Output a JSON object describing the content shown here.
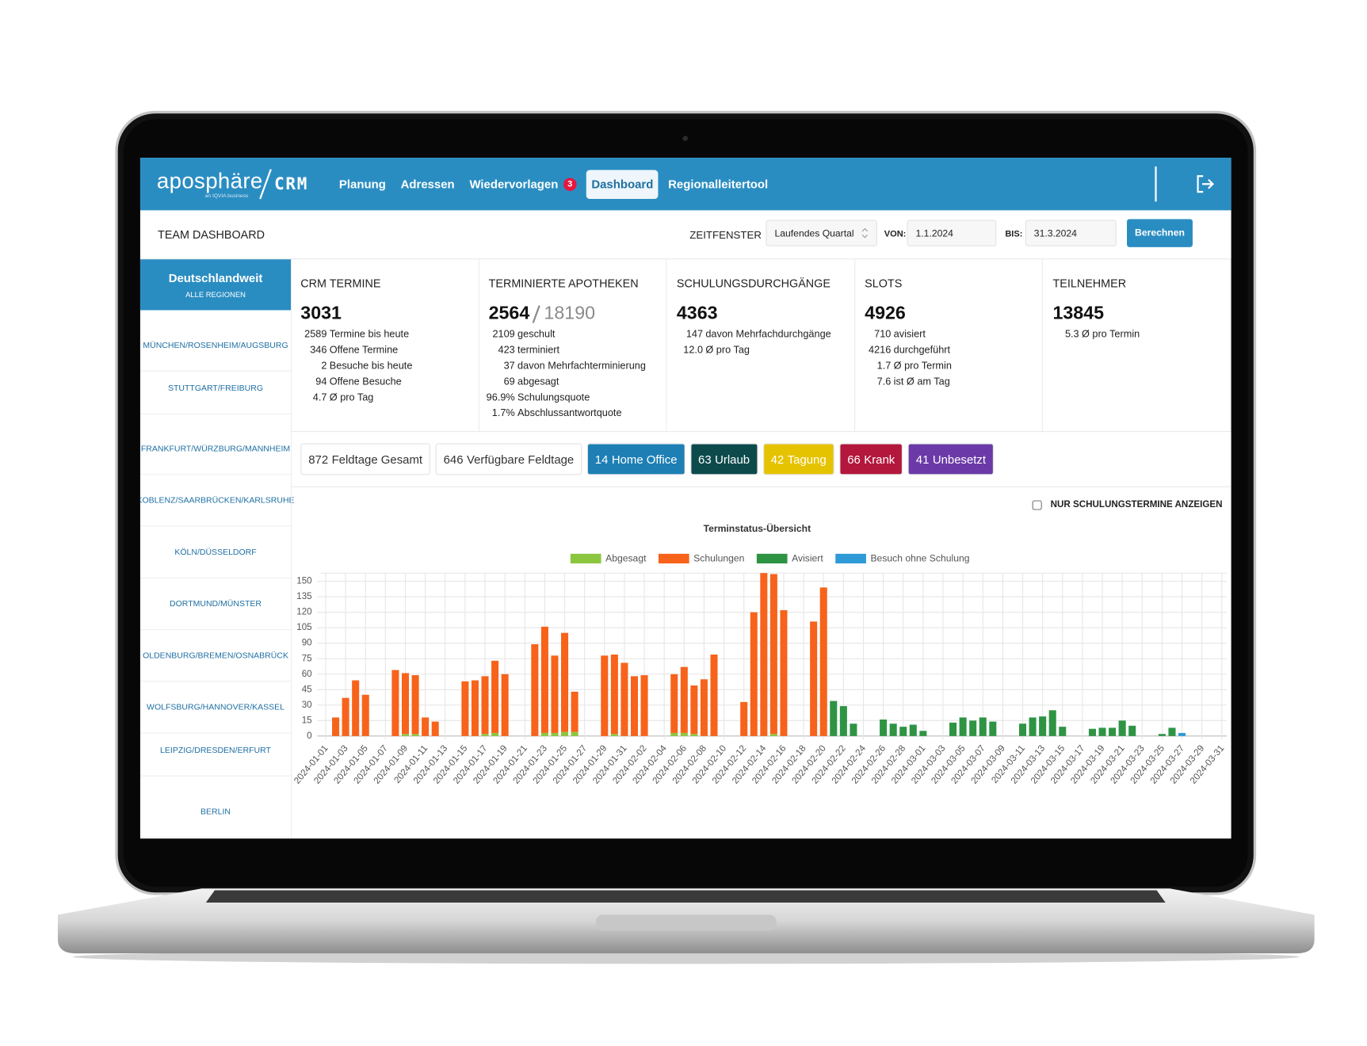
{
  "nav": {
    "logo": "aposphäre",
    "logo_tagline": "an IQVIA business",
    "app": "CRM",
    "items": [
      {
        "label": "Planung"
      },
      {
        "label": "Adressen"
      },
      {
        "label": "Wiedervorlagen",
        "badge": 3
      },
      {
        "label": "Dashboard",
        "active": true
      },
      {
        "label": "Regionalleitertool"
      }
    ]
  },
  "header": {
    "title": "TEAM DASHBOARD",
    "window_label": "ZEITFENSTER",
    "window": "Laufendes Quartal",
    "from_label": "VON:",
    "from": "1.1.2024",
    "to_label": "BIS:",
    "to": "31.3.2024",
    "button": "Berechnen"
  },
  "sidebar": {
    "active": {
      "title": "Deutschlandweit",
      "subtitle": "ALLE REGIONEN"
    },
    "regions": [
      "MÜNCHEN/ROSENHEIM/AUGSBURG",
      "STUTTGART/FREIBURG",
      "FRANKFURT/WÜRZBURG/MANNHEIM",
      "KOBLENZ/SAARBRÜCKEN/KARLSRUHE",
      "KÖLN/DÜSSELDORF",
      "DORTMUND/MÜNSTER",
      "OLDENBURG/BREMEN/OSNABRÜCK",
      "WOLFSBURG/HANNOVER/KASSEL",
      "LEIPZIG/DRESDEN/ERFURT",
      "BERLIN"
    ]
  },
  "kpis": [
    {
      "title": "CRM TERMINE",
      "value": 3031,
      "rows": [
        {
          "value": 2589,
          "label": "Termine bis heute"
        },
        {
          "value": 346,
          "label": "Offene Termine"
        },
        {
          "value": 2,
          "label": "Besuche bis heute"
        },
        {
          "value": 94,
          "label": "Offene Besuche"
        },
        {
          "value": 4.7,
          "label": "Ø pro Tag"
        }
      ]
    },
    {
      "title": "TERMINIERTE APOTHEKEN",
      "value": 2564,
      "total": 18190,
      "rows": [
        {
          "value": 2109,
          "label": "geschult"
        },
        {
          "value": 423,
          "label": "terminiert"
        },
        {
          "value": 37,
          "label": "davon Mehrfachterminierung"
        },
        {
          "value": 69,
          "label": "abgesagt"
        },
        {
          "value": "96.9%",
          "label": "Schulungsquote"
        },
        {
          "value": "1.7%",
          "label": "Abschlussantwortquote"
        }
      ]
    },
    {
      "title": "SCHULUNGSDURCHGÄNGE",
      "value": 4363,
      "rows": [
        {
          "value": 147,
          "label": "davon Mehrfachdurchgänge"
        },
        {
          "value": "12.0",
          "label": "Ø pro Tag"
        }
      ]
    },
    {
      "title": "SLOTS",
      "value": 4926,
      "rows": [
        {
          "value": 710,
          "label": "avisiert"
        },
        {
          "value": 4216,
          "label": "durchgeführt"
        },
        {
          "value": 1.7,
          "label": "Ø pro Termin"
        },
        {
          "value": 7.6,
          "label": "ist Ø am Tag"
        }
      ]
    },
    {
      "title": "TEILNEHMER",
      "value": 13845,
      "rows": [
        {
          "value": 5.3,
          "label": "Ø pro Termin"
        }
      ]
    }
  ],
  "chips": [
    {
      "count": 872,
      "label": "Feldtage Gesamt",
      "color": "#ffffff",
      "text_color": "#333333"
    },
    {
      "count": 646,
      "label": "Verfügbare Feldtage",
      "color": "#ffffff",
      "text_color": "#333333"
    },
    {
      "count": 14,
      "label": "Home Office",
      "color": "#1d7fb4",
      "text_color": "#ffffff"
    },
    {
      "count": 63,
      "label": "Urlaub",
      "color": "#0d4a4c",
      "text_color": "#ffffff"
    },
    {
      "count": 42,
      "label": "Tagung",
      "color": "#e6c300",
      "text_color": "#ffffff"
    },
    {
      "count": 66,
      "label": "Krank",
      "color": "#b3173c",
      "text_color": "#ffffff"
    },
    {
      "count": 41,
      "label": "Unbesetzt",
      "color": "#6b3aa8",
      "text_color": "#ffffff"
    }
  ],
  "filter": {
    "label": "NUR SCHULUNGSTERMINE ANZEIGEN",
    "checked": false
  },
  "chart_data": {
    "type": "stacked_bar",
    "title": "Terminstatus-Übersicht",
    "categories": [
      "2024-01-01",
      null,
      "2024-01-03",
      null,
      "2024-01-05",
      null,
      "2024-01-07",
      null,
      "2024-01-09",
      null,
      "2024-01-11",
      null,
      "2024-01-13",
      null,
      "2024-01-15",
      null,
      "2024-01-17",
      null,
      "2024-01-19",
      null,
      "2024-01-21",
      null,
      "2024-01-23",
      null,
      "2024-01-25",
      null,
      "2024-01-27",
      null,
      "2024-01-29",
      null,
      "2024-01-31",
      null,
      "2024-02-02",
      null,
      "2024-02-04",
      null,
      "2024-02-06",
      null,
      "2024-02-08",
      null,
      "2024-02-10",
      null,
      "2024-02-12",
      null,
      "2024-02-14",
      null,
      "2024-02-16",
      null,
      "2024-02-18",
      null,
      "2024-02-20",
      null,
      "2024-02-22",
      null,
      "2024-02-24",
      null,
      "2024-02-26",
      null,
      "2024-02-28",
      null,
      "2024-03-01",
      null,
      "2024-03-03",
      null,
      "2024-03-05",
      null,
      "2024-03-07",
      null,
      "2024-03-09",
      null,
      "2024-03-11",
      null,
      "2024-03-13",
      null,
      "2024-03-15",
      null,
      "2024-03-17",
      null,
      "2024-03-19",
      null,
      "2024-03-21",
      null,
      "2024-03-23",
      null,
      "2024-03-25",
      null,
      "2024-03-27",
      null,
      "2024-03-29",
      null,
      "2024-03-31"
    ],
    "series": [
      {
        "name": "Abgesagt",
        "color": "#8cc63f",
        "values": [
          0,
          0,
          0,
          0,
          0,
          0,
          0,
          0,
          2,
          2,
          0,
          0,
          0,
          0,
          0,
          0,
          2,
          3,
          0,
          0,
          0,
          0,
          3,
          3,
          4,
          4,
          0,
          0,
          0,
          2,
          0,
          0,
          0,
          0,
          0,
          3,
          3,
          2,
          0,
          0,
          0,
          0,
          0,
          0,
          0,
          2,
          0,
          0,
          0,
          0,
          0,
          0,
          0,
          0,
          0,
          0,
          0,
          0,
          0,
          0,
          0,
          0,
          0,
          0,
          0,
          0,
          0,
          0,
          0,
          0,
          0,
          0,
          0,
          0,
          0,
          0,
          0,
          0,
          0,
          0,
          0,
          0,
          0,
          0,
          0,
          0,
          0,
          0,
          0,
          0,
          0
        ]
      },
      {
        "name": "Schulungen",
        "color": "#f7631b",
        "values": [
          0,
          18,
          37,
          54,
          40,
          0,
          0,
          64,
          59,
          57,
          18,
          14,
          0,
          0,
          53,
          54,
          56,
          70,
          60,
          0,
          0,
          89,
          103,
          75,
          96,
          39,
          0,
          0,
          78,
          77,
          71,
          58,
          59,
          0,
          0,
          57,
          64,
          47,
          55,
          79,
          0,
          0,
          33,
          120,
          158,
          155,
          122,
          0,
          0,
          111,
          144,
          0,
          0,
          0,
          0,
          0,
          0,
          0,
          0,
          0,
          0,
          0,
          0,
          0,
          0,
          0,
          0,
          0,
          0,
          0,
          0,
          0,
          0,
          0,
          0,
          0,
          0,
          0,
          0,
          0,
          0,
          0,
          0,
          0,
          0,
          0,
          0,
          0,
          0,
          0,
          0
        ]
      },
      {
        "name": "Avisiert",
        "color": "#2e9444",
        "values": [
          0,
          0,
          0,
          0,
          0,
          0,
          0,
          0,
          0,
          0,
          0,
          0,
          0,
          0,
          0,
          0,
          0,
          0,
          0,
          0,
          0,
          0,
          0,
          0,
          0,
          0,
          0,
          0,
          0,
          0,
          0,
          0,
          0,
          0,
          0,
          0,
          0,
          0,
          0,
          0,
          0,
          0,
          0,
          0,
          0,
          0,
          0,
          0,
          0,
          0,
          0,
          34,
          29,
          12,
          0,
          0,
          16,
          12,
          9,
          11,
          5,
          0,
          0,
          13,
          18,
          15,
          18,
          14,
          0,
          0,
          12,
          18,
          19,
          25,
          9,
          0,
          0,
          7,
          8,
          8,
          15,
          10,
          0,
          0,
          2,
          8,
          0,
          0,
          0,
          0,
          0
        ]
      },
      {
        "name": "Besuch ohne Schulung",
        "color": "#2f9bd6",
        "values": [
          0,
          0,
          0,
          0,
          0,
          0,
          0,
          0,
          0,
          0,
          0,
          0,
          0,
          0,
          0,
          0,
          0,
          0,
          0,
          0,
          0,
          0,
          0,
          0,
          0,
          0,
          0,
          0,
          0,
          0,
          0,
          0,
          0,
          0,
          0,
          0,
          0,
          0,
          0,
          0,
          0,
          0,
          0,
          0,
          0,
          0,
          0,
          0,
          0,
          0,
          0,
          0,
          0,
          0,
          0,
          0,
          0,
          0,
          0,
          0,
          0,
          0,
          0,
          0,
          0,
          0,
          0,
          0,
          0,
          0,
          0,
          0,
          0,
          0,
          0,
          0,
          0,
          0,
          0,
          0,
          0,
          0,
          0,
          0,
          0,
          0,
          3,
          0,
          0,
          0,
          0
        ]
      }
    ],
    "ylim": [
      0,
      158
    ],
    "yticks": [
      0,
      15,
      30,
      45,
      60,
      75,
      90,
      105,
      120,
      135,
      150
    ],
    "grid": true
  }
}
